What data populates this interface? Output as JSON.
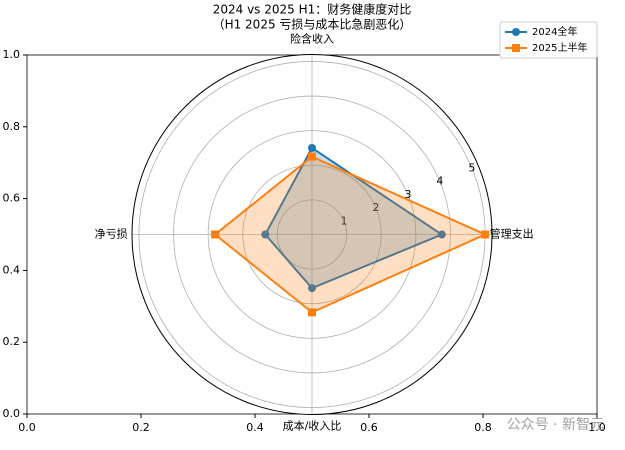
{
  "chart_data": {
    "type": "radar",
    "title": "2024 vs 2025 H1：财务健康度对比",
    "subtitle": "（H1 2025 亏损与成本比急剧恶化）",
    "categories": [
      "险含收入",
      "管理支出",
      "成本/收入比",
      "净亏损"
    ],
    "series": [
      {
        "name": "2024全年",
        "color": "#1f77b4",
        "marker": "circle",
        "values": [
          2.5,
          3.75,
          1.55,
          1.35
        ]
      },
      {
        "name": "2025上半年",
        "color": "#ff7f0e",
        "marker": "square",
        "values": [
          2.25,
          5.0,
          2.25,
          2.8
        ]
      }
    ],
    "rlim": [
      0,
      5.2
    ],
    "rticks": [
      1,
      2,
      3,
      4,
      5
    ],
    "xlim": [
      0,
      1
    ],
    "ylim": [
      0,
      1
    ],
    "xticks": [
      {
        "value": 0,
        "label": "0.0"
      },
      {
        "value": 0.2,
        "label": "0.2"
      },
      {
        "value": 0.4,
        "label": "0.4"
      },
      {
        "value": 0.6,
        "label": "0.6"
      },
      {
        "value": 0.8,
        "label": "0.8"
      },
      {
        "value": 1,
        "label": "1.0"
      }
    ],
    "yticks": [
      {
        "value": 0,
        "label": "0.0"
      },
      {
        "value": 0.2,
        "label": "0.2"
      },
      {
        "value": 0.4,
        "label": "0.4"
      },
      {
        "value": 0.6,
        "label": "0.6"
      },
      {
        "value": 0.8,
        "label": "0.8"
      },
      {
        "value": 1,
        "label": "1.0"
      }
    ],
    "legend": "upper right",
    "watermark": "公众号 · 新智元"
  }
}
